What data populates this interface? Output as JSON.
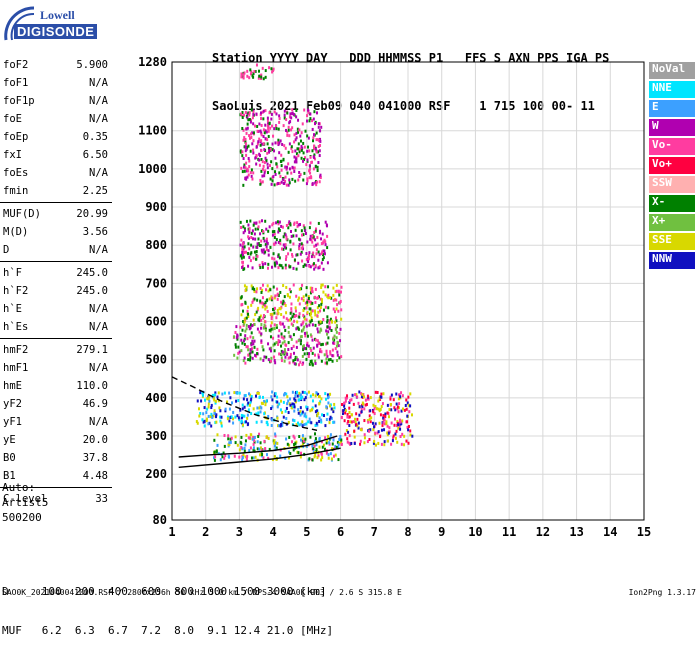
{
  "logo": {
    "line1": "Lowell",
    "line2": "DIGISONDE"
  },
  "header": {
    "line1": "Station YYYY DAY   DDD HHMMSS P1   FFS S AXN PPS IGA PS",
    "line2": "SaoLuis 2021 Feb09 040 041000 RSF    1 715 100 00- 11"
  },
  "params": [
    {
      "label": "foF2",
      "value": "5.900"
    },
    {
      "label": "foF1",
      "value": "N/A"
    },
    {
      "label": "foF1p",
      "value": "N/A"
    },
    {
      "label": "foE",
      "value": "N/A"
    },
    {
      "label": "foEp",
      "value": "0.35"
    },
    {
      "label": "fxI",
      "value": "6.50"
    },
    {
      "label": "foEs",
      "value": "N/A"
    },
    {
      "label": "fmin",
      "value": "2.25"
    },
    {
      "label": "MUF(D)",
      "value": "20.99"
    },
    {
      "label": "M(D)",
      "value": "3.56"
    },
    {
      "label": "D",
      "value": "N/A"
    },
    {
      "label": "h`F",
      "value": "245.0"
    },
    {
      "label": "h`F2",
      "value": "245.0"
    },
    {
      "label": "h`E",
      "value": "N/A"
    },
    {
      "label": "h`Es",
      "value": "N/A"
    },
    {
      "label": "hmF2",
      "value": "279.1"
    },
    {
      "label": "hmF1",
      "value": "N/A"
    },
    {
      "label": "hmE",
      "value": "110.0"
    },
    {
      "label": "yF2",
      "value": "46.9"
    },
    {
      "label": "yF1",
      "value": "N/A"
    },
    {
      "label": "yE",
      "value": "20.0"
    },
    {
      "label": "B0",
      "value": "37.8"
    },
    {
      "label": "B1",
      "value": "4.48"
    },
    {
      "label": "C-level",
      "value": "33"
    }
  ],
  "auto": {
    "line1": "Auto:",
    "line2": "Artist5",
    "line3": "500200"
  },
  "legend": [
    {
      "label": "NoVal",
      "color": "#a0a0a0"
    },
    {
      "label": "NNE",
      "color": "#00e5ff"
    },
    {
      "label": "E",
      "color": "#3ca0ff"
    },
    {
      "label": "W",
      "color": "#b000b0"
    },
    {
      "label": "Vo-",
      "color": "#ff3ca0"
    },
    {
      "label": "Vo+",
      "color": "#ff0040"
    },
    {
      "label": "SSW",
      "color": "#ffb0b0"
    },
    {
      "label": "X-",
      "color": "#008000"
    },
    {
      "label": "X+",
      "color": "#70c040"
    },
    {
      "label": "SSE",
      "color": "#d8d800"
    },
    {
      "label": "NNW",
      "color": "#1010c0"
    }
  ],
  "chart_data": {
    "type": "scatter",
    "title": "",
    "xlabel": "",
    "ylabel": "",
    "xlim": [
      1,
      15
    ],
    "ylim": [
      80,
      1280
    ],
    "x_ticks": [
      1,
      2,
      3,
      4,
      5,
      6,
      7,
      8,
      9,
      10,
      11,
      12,
      13,
      14,
      15
    ],
    "y_ticks": [
      80,
      200,
      300,
      400,
      500,
      600,
      700,
      800,
      900,
      1000,
      1100,
      1280
    ],
    "grid": true,
    "traces": [
      {
        "name": "O-trace",
        "color": "#000000",
        "points": [
          [
            1.2,
            245
          ],
          [
            2,
            250
          ],
          [
            3,
            255
          ],
          [
            4,
            262
          ],
          [
            5,
            275
          ],
          [
            5.9,
            300
          ]
        ]
      },
      {
        "name": "X-trace",
        "color": "#000000",
        "points": [
          [
            1.2,
            218
          ],
          [
            3,
            232
          ],
          [
            4,
            240
          ],
          [
            5,
            252
          ],
          [
            6,
            268
          ]
        ]
      },
      {
        "name": "dashed",
        "color": "#000000",
        "dashed": true,
        "points": [
          [
            1,
            455
          ],
          [
            1.6,
            430
          ],
          [
            2.5,
            390
          ],
          [
            3.5,
            355
          ],
          [
            4.5,
            330
          ],
          [
            5.3,
            315
          ]
        ]
      }
    ],
    "echo_clusters": [
      {
        "x0": 2.2,
        "x1": 6.0,
        "y0": 240,
        "y1": 310,
        "colors": [
          "#ff3ca0",
          "#008000",
          "#d8d800",
          "#3ca0ff"
        ]
      },
      {
        "x0": 6.0,
        "x1": 8.1,
        "y0": 280,
        "y1": 420,
        "colors": [
          "#ff3ca0",
          "#ff0040",
          "#d8d800",
          "#1010c0"
        ]
      },
      {
        "x0": 1.7,
        "x1": 5.8,
        "y0": 330,
        "y1": 420,
        "colors": [
          "#00e5ff",
          "#d8d800",
          "#3ca0ff",
          "#1010c0"
        ]
      },
      {
        "x0": 2.8,
        "x1": 6.0,
        "y0": 490,
        "y1": 600,
        "colors": [
          "#ff3ca0",
          "#008000",
          "#70c040",
          "#b000b0"
        ]
      },
      {
        "x0": 3.0,
        "x1": 6.0,
        "y0": 600,
        "y1": 700,
        "colors": [
          "#d8d800",
          "#008000",
          "#ff3ca0"
        ]
      },
      {
        "x0": 3.0,
        "x1": 5.6,
        "y0": 740,
        "y1": 870,
        "colors": [
          "#ff3ca0",
          "#008000",
          "#b000b0"
        ]
      },
      {
        "x0": 3.0,
        "x1": 5.4,
        "y0": 960,
        "y1": 1160,
        "colors": [
          "#ff3ca0",
          "#008000",
          "#b000b0"
        ]
      },
      {
        "x0": 3.0,
        "x1": 4.0,
        "y0": 1240,
        "y1": 1280,
        "colors": [
          "#ff3ca0",
          "#008000"
        ]
      }
    ]
  },
  "footer": {
    "d_line": "D     100  200  400  600  800 1000 1500 3000 [km]",
    "muf_line": "MUF   6.2  6.3  6.7  7.2  8.0  9.1 12.4 21.0 [MHz]",
    "file_line": "SAO0K_2021040041000.RSF / 280fx256h 50 kHz 5.0 km / DPS-4 SAA0K 903 / 2.6 S 315.8 E",
    "version": "Ion2Png 1.3.17"
  }
}
